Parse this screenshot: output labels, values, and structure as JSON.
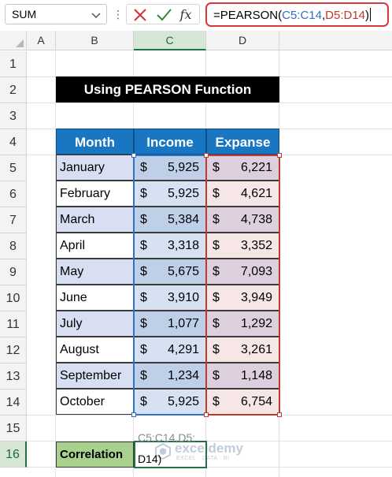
{
  "formula_bar": {
    "name_box": "SUM",
    "fx_label": "fx",
    "formula_prefix": "=PEARSON(",
    "formula_ref1": "C5:C14",
    "formula_comma": ",",
    "formula_ref2": "D5:D14",
    "formula_suffix": ")"
  },
  "columns": [
    "A",
    "B",
    "C",
    "D"
  ],
  "rows": [
    "1",
    "2",
    "3",
    "4",
    "5",
    "6",
    "7",
    "8",
    "9",
    "10",
    "11",
    "12",
    "13",
    "14",
    "15",
    "16"
  ],
  "sheet": {
    "title": "Using PEARSON Function",
    "headers": {
      "month": "Month",
      "income": "Income",
      "expense": "Expanse"
    },
    "currency_symbol": "$",
    "data": [
      {
        "month": "January",
        "income": "5,925",
        "expense": "6,221"
      },
      {
        "month": "February",
        "income": "5,925",
        "expense": "4,621"
      },
      {
        "month": "March",
        "income": "5,384",
        "expense": "4,738"
      },
      {
        "month": "April",
        "income": "3,318",
        "expense": "3,352"
      },
      {
        "month": "May",
        "income": "5,675",
        "expense": "7,093"
      },
      {
        "month": "June",
        "income": "3,910",
        "expense": "3,949"
      },
      {
        "month": "July",
        "income": "1,077",
        "expense": "1,292"
      },
      {
        "month": "August",
        "income": "4,291",
        "expense": "3,261"
      },
      {
        "month": "September",
        "income": "1,234",
        "expense": "1,148"
      },
      {
        "month": "October",
        "income": "5,925",
        "expense": "6,754"
      }
    ],
    "correlation_label": "Correlation",
    "edit_line1": "C5:C14,D5:",
    "edit_line2": "D14)"
  },
  "watermark": {
    "name": "exceldemy",
    "tagline": "EXCEL · DATA · BI"
  },
  "colors": {
    "title_bg": "#000000",
    "header_bg": "#1976c2",
    "correlation_bg": "#a9d18e",
    "ref_blue": "#2f6fc7",
    "ref_red": "#c0392b",
    "formula_border": "#d9383b"
  }
}
